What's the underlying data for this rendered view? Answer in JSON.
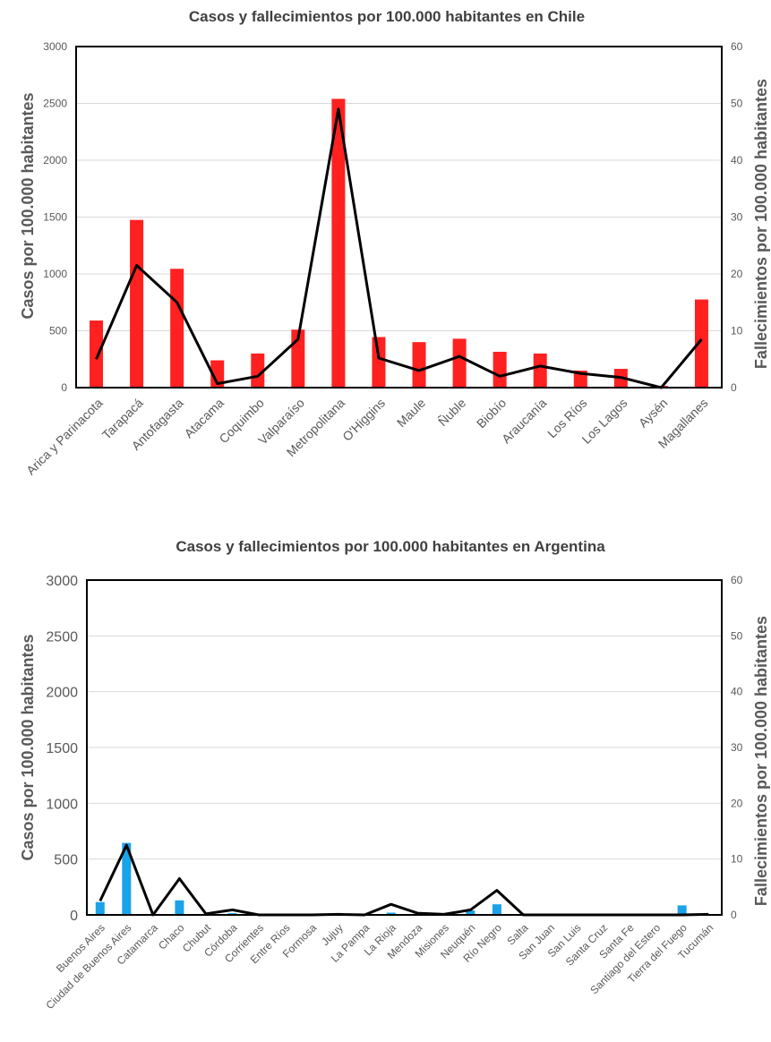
{
  "chart_data": [
    {
      "type": "bar",
      "title": "Casos y fallecimientos por 100.000 habitantes en Chile",
      "ylabel": "Casos por 100.000 habitantes",
      "y2label": "Fallecimientos por 100.000 habitantes",
      "ylim": [
        0,
        3000
      ],
      "y2lim": [
        0,
        60
      ],
      "yticks": [
        "0",
        "500",
        "1000",
        "1500",
        "2000",
        "2500",
        "3000"
      ],
      "y2ticks": [
        "0",
        "10",
        "20",
        "30",
        "40",
        "50",
        "60"
      ],
      "bar_color": "#ff2020",
      "line_color": "#000000",
      "grid": true,
      "categories": [
        "Arica y Parinacota",
        "Tarapacá",
        "Antofagasta",
        "Atacama",
        "Coquimbo",
        "Valparaíso",
        "Metropolitana",
        "O'Higgins",
        "Maule",
        "Ñuble",
        "Biobío",
        "Araucanía",
        "Los Ríos",
        "Los Lagos",
        "Aysén",
        "Magallanes"
      ],
      "series": [
        {
          "type": "bar",
          "axis": "left",
          "values": [
            590,
            1475,
            1045,
            240,
            300,
            510,
            2540,
            445,
            400,
            430,
            315,
            300,
            150,
            165,
            15,
            775
          ]
        },
        {
          "type": "line",
          "axis": "right",
          "values": [
            5,
            21.5,
            15,
            0.7,
            2,
            8.5,
            49,
            5.2,
            3,
            5.5,
            2,
            3.8,
            2.5,
            1.8,
            0,
            8.5
          ]
        }
      ]
    },
    {
      "type": "bar",
      "title": "Casos y fallecimientos por 100.000 habitantes en Argentina",
      "ylabel": "Casos por 100.000 habitantes",
      "y2label": "Fallecimientos por 100.000 habitantes",
      "ylim": [
        0,
        3000
      ],
      "y2lim": [
        0,
        60
      ],
      "yticks": [
        "0",
        "500",
        "1000",
        "1500",
        "2000",
        "2500",
        "3000"
      ],
      "y2ticks": [
        "0",
        "10",
        "20",
        "30",
        "40",
        "50",
        "60"
      ],
      "bar_color": "#1aa3e8",
      "line_color": "#000000",
      "grid": true,
      "categories": [
        "Buenos Aires",
        "Ciudad de Buenos Aires",
        "Catamarca",
        "Chaco",
        "Chubut",
        "Córdoba",
        "Corrientes",
        "Entre Ríos",
        "Formosa",
        "Jujuy",
        "La Pampa",
        "La Rioja",
        "Mendoza",
        "Misiones",
        "Neuquén",
        "Río Negro",
        "Salta",
        "San Juan",
        "San Luis",
        "Santa Cruz",
        "Santa Fe",
        "Santiago del Estero",
        "Tierra del Fuego",
        "Tucumán"
      ],
      "series": [
        {
          "type": "bar",
          "axis": "left",
          "values": [
            115,
            645,
            2,
            130,
            3,
            15,
            3,
            3,
            1,
            5,
            3,
            20,
            10,
            6,
            40,
            95,
            2,
            0,
            0,
            1,
            3,
            0,
            85,
            4
          ]
        },
        {
          "type": "line",
          "axis": "right",
          "values": [
            2.5,
            12.5,
            0,
            6.5,
            0.2,
            0.9,
            0,
            0,
            0,
            0.1,
            0,
            1.9,
            0.3,
            0.1,
            0.9,
            4.4,
            0,
            0,
            0,
            0,
            0,
            0,
            0,
            0.1
          ]
        }
      ]
    }
  ]
}
